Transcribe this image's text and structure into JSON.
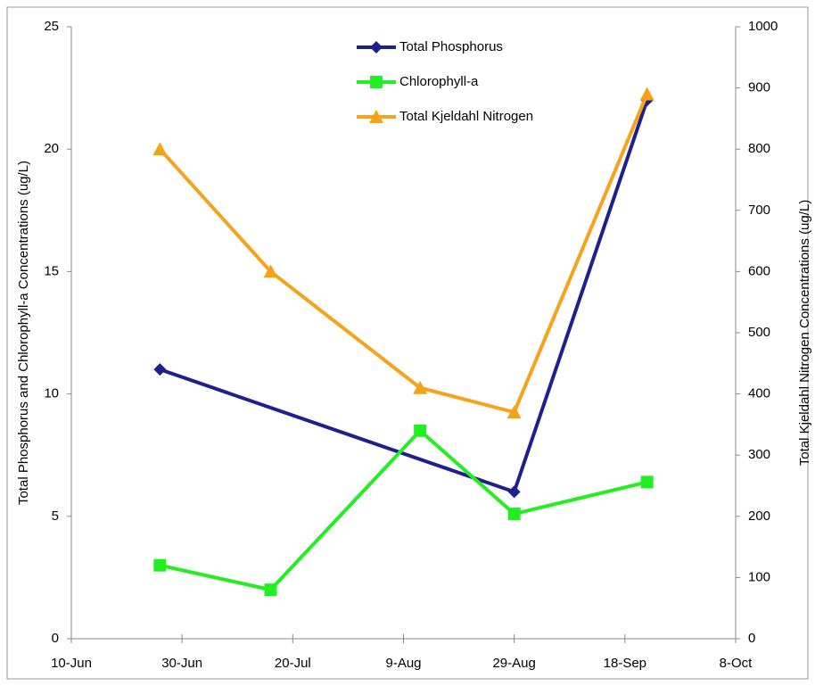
{
  "chart_data": {
    "type": "line",
    "ylabel": "Total Phosphorus and Chlorophyll-a Concentrations (ug/L)",
    "y2label": "Total Kjeldahl Nitrogen Concentrations (ug/L)",
    "xlim": [
      "10-Jun",
      "8-Oct"
    ],
    "xticks": [
      "10-Jun",
      "30-Jun",
      "20-Jul",
      "9-Aug",
      "29-Aug",
      "18-Sep",
      "8-Oct"
    ],
    "ylim": [
      0,
      25
    ],
    "yticks": [
      0,
      5,
      10,
      15,
      20,
      25
    ],
    "y2lim": [
      0,
      1000
    ],
    "y2ticks": [
      0,
      100,
      200,
      300,
      400,
      500,
      600,
      700,
      800,
      900,
      1000
    ],
    "legend": "top",
    "series": [
      {
        "name": "Total Phosphorus",
        "color": "#1f1f8f",
        "marker": "diamond",
        "x": [
          "26-Jun",
          "29-Aug",
          "22-Sep"
        ],
        "values": [
          11,
          6,
          22
        ]
      },
      {
        "name": "Chlorophyll-a",
        "color": "#22ee22",
        "marker": "square",
        "x": [
          "26-Jun",
          "16-Jul",
          "12-Aug",
          "29-Aug",
          "22-Sep"
        ],
        "values": [
          3,
          2,
          8.5,
          5.1,
          6.4
        ]
      },
      {
        "name": "Total Kjeldahl Nitrogen",
        "color": "#f7a21b",
        "marker": "triangle",
        "axis": "y2",
        "x": [
          "26-Jun",
          "16-Jul",
          "12-Aug",
          "29-Aug",
          "22-Sep"
        ],
        "values": [
          800,
          600,
          410,
          370,
          890
        ]
      }
    ]
  }
}
